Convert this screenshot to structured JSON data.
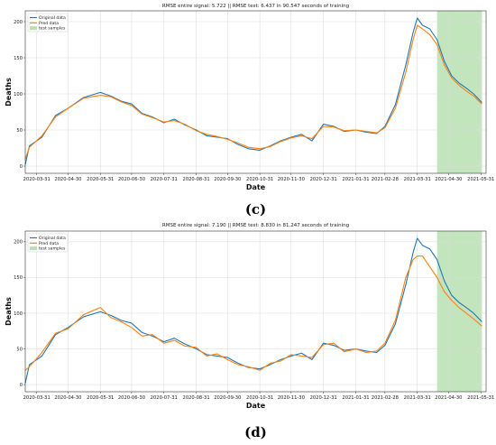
{
  "chart_data": [
    {
      "type": "line",
      "panel_label": "(c)",
      "title": "RMSE entire signal: 5.722 || RMSE test: 6.437 in 90.547 seconds of training",
      "xlabel": "Date",
      "ylabel": "Deaths",
      "ylim": [
        -10,
        215
      ],
      "yticks": [
        0,
        50,
        100,
        150,
        200
      ],
      "xticks": [
        "2020-03-31",
        "2020-04-30",
        "2020-05-31",
        "2020-06-30",
        "2020-07-31",
        "2020-08-31",
        "2020-09-30",
        "2020-10-31",
        "2020-11-30",
        "2020-12-31",
        "2021-01-31",
        "2021-02-28",
        "2021-03-31",
        "2021-04-30",
        "2021-05-31"
      ],
      "x_start": "2020-03-20",
      "x_end": "2021-06-05",
      "grid": true,
      "legend_position": "top-left",
      "test_region": {
        "start": "2021-04-19",
        "end": "2021-06-01",
        "label": "test samples",
        "color": "#b9e0b3"
      },
      "series": [
        {
          "name": "Original data",
          "color": "#1f77b4",
          "x": [
            "2020-03-20",
            "2020-03-24",
            "2020-04-05",
            "2020-04-18",
            "2020-04-30",
            "2020-05-15",
            "2020-05-31",
            "2020-06-10",
            "2020-06-20",
            "2020-06-30",
            "2020-07-10",
            "2020-07-20",
            "2020-07-31",
            "2020-08-10",
            "2020-08-20",
            "2020-08-31",
            "2020-09-10",
            "2020-09-20",
            "2020-09-30",
            "2020-10-10",
            "2020-10-20",
            "2020-10-31",
            "2020-11-10",
            "2020-11-20",
            "2020-11-30",
            "2020-12-10",
            "2020-12-20",
            "2020-12-31",
            "2021-01-10",
            "2021-01-20",
            "2021-01-31",
            "2021-02-10",
            "2021-02-20",
            "2021-02-28",
            "2021-03-10",
            "2021-03-20",
            "2021-03-27",
            "2021-03-31",
            "2021-04-05",
            "2021-04-12",
            "2021-04-19",
            "2021-04-26",
            "2021-05-03",
            "2021-05-10",
            "2021-05-17",
            "2021-05-24",
            "2021-06-01"
          ],
          "values": [
            2,
            28,
            40,
            70,
            80,
            95,
            102,
            97,
            90,
            86,
            73,
            68,
            60,
            65,
            57,
            50,
            42,
            40,
            38,
            30,
            24,
            22,
            28,
            35,
            40,
            44,
            35,
            58,
            55,
            48,
            50,
            47,
            45,
            55,
            85,
            140,
            185,
            205,
            195,
            190,
            175,
            145,
            125,
            115,
            108,
            100,
            88
          ]
        },
        {
          "name": "Pred data",
          "color": "#ff7f0e",
          "x": [
            "2020-03-20",
            "2020-03-24",
            "2020-04-05",
            "2020-04-18",
            "2020-04-30",
            "2020-05-15",
            "2020-05-31",
            "2020-06-10",
            "2020-06-20",
            "2020-06-30",
            "2020-07-10",
            "2020-07-20",
            "2020-07-31",
            "2020-08-10",
            "2020-08-20",
            "2020-08-31",
            "2020-09-10",
            "2020-09-20",
            "2020-09-30",
            "2020-10-10",
            "2020-10-20",
            "2020-10-31",
            "2020-11-10",
            "2020-11-20",
            "2020-11-30",
            "2020-12-10",
            "2020-12-20",
            "2020-12-31",
            "2021-01-10",
            "2021-01-20",
            "2021-01-31",
            "2021-02-10",
            "2021-02-20",
            "2021-02-28",
            "2021-03-10",
            "2021-03-20",
            "2021-03-27",
            "2021-03-31",
            "2021-04-05",
            "2021-04-12",
            "2021-04-19",
            "2021-04-26",
            "2021-05-03",
            "2021-05-10",
            "2021-05-17",
            "2021-05-24",
            "2021-06-01"
          ],
          "values": [
            10,
            26,
            42,
            68,
            80,
            94,
            98,
            96,
            89,
            84,
            72,
            67,
            61,
            63,
            58,
            49,
            44,
            41,
            37,
            32,
            26,
            24,
            27,
            34,
            39,
            42,
            38,
            55,
            54,
            49,
            50,
            48,
            46,
            53,
            80,
            130,
            175,
            195,
            190,
            182,
            168,
            140,
            122,
            112,
            104,
            97,
            86
          ]
        }
      ]
    },
    {
      "type": "line",
      "panel_label": "(d)",
      "title": "RMSE entire signal: 7.190 || RMSE test: 8.830 in 81.247 seconds of training",
      "xlabel": "Date",
      "ylabel": "Deaths",
      "ylim": [
        -10,
        215
      ],
      "yticks": [
        0,
        50,
        100,
        150,
        200
      ],
      "xticks": [
        "2020-03-31",
        "2020-04-30",
        "2020-05-31",
        "2020-06-30",
        "2020-07-31",
        "2020-08-31",
        "2020-09-30",
        "2020-10-31",
        "2020-11-30",
        "2020-12-31",
        "2021-01-31",
        "2021-02-28",
        "2021-03-31",
        "2021-04-30",
        "2021-05-31"
      ],
      "x_start": "2020-03-20",
      "x_end": "2021-06-05",
      "grid": true,
      "legend_position": "top-left",
      "test_region": {
        "start": "2021-04-19",
        "end": "2021-06-01",
        "label": "test samples",
        "color": "#b9e0b3"
      },
      "series": [
        {
          "name": "Original data",
          "color": "#1f77b4",
          "x": [
            "2020-03-20",
            "2020-03-24",
            "2020-04-05",
            "2020-04-18",
            "2020-04-30",
            "2020-05-15",
            "2020-05-31",
            "2020-06-10",
            "2020-06-20",
            "2020-06-30",
            "2020-07-10",
            "2020-07-20",
            "2020-07-31",
            "2020-08-10",
            "2020-08-20",
            "2020-08-31",
            "2020-09-10",
            "2020-09-20",
            "2020-09-30",
            "2020-10-10",
            "2020-10-20",
            "2020-10-31",
            "2020-11-10",
            "2020-11-20",
            "2020-11-30",
            "2020-12-10",
            "2020-12-20",
            "2020-12-31",
            "2021-01-10",
            "2021-01-20",
            "2021-01-31",
            "2021-02-10",
            "2021-02-20",
            "2021-02-28",
            "2021-03-10",
            "2021-03-20",
            "2021-03-27",
            "2021-03-31",
            "2021-04-05",
            "2021-04-12",
            "2021-04-19",
            "2021-04-26",
            "2021-05-03",
            "2021-05-10",
            "2021-05-17",
            "2021-05-24",
            "2021-06-01"
          ],
          "values": [
            2,
            28,
            40,
            70,
            80,
            95,
            102,
            97,
            90,
            86,
            73,
            68,
            60,
            65,
            57,
            50,
            42,
            40,
            38,
            30,
            24,
            22,
            28,
            35,
            40,
            44,
            35,
            58,
            55,
            48,
            50,
            47,
            45,
            55,
            85,
            140,
            185,
            205,
            195,
            190,
            175,
            145,
            125,
            115,
            108,
            100,
            88
          ]
        },
        {
          "name": "Pred data",
          "color": "#ff7f0e",
          "x": [
            "2020-03-20",
            "2020-03-24",
            "2020-04-05",
            "2020-04-18",
            "2020-04-30",
            "2020-05-15",
            "2020-05-31",
            "2020-06-10",
            "2020-06-20",
            "2020-06-30",
            "2020-07-10",
            "2020-07-20",
            "2020-07-31",
            "2020-08-10",
            "2020-08-20",
            "2020-08-31",
            "2020-09-10",
            "2020-09-20",
            "2020-09-30",
            "2020-10-10",
            "2020-10-20",
            "2020-10-31",
            "2020-11-10",
            "2020-11-20",
            "2020-11-30",
            "2020-12-10",
            "2020-12-20",
            "2020-12-31",
            "2021-01-10",
            "2021-01-20",
            "2021-01-31",
            "2021-02-10",
            "2021-02-20",
            "2021-02-28",
            "2021-03-10",
            "2021-03-20",
            "2021-03-27",
            "2021-03-31",
            "2021-04-05",
            "2021-04-12",
            "2021-04-19",
            "2021-04-26",
            "2021-05-03",
            "2021-05-10",
            "2021-05-17",
            "2021-05-24",
            "2021-06-01"
          ],
          "values": [
            20,
            25,
            45,
            72,
            78,
            98,
            108,
            94,
            88,
            80,
            68,
            70,
            58,
            62,
            54,
            52,
            40,
            43,
            35,
            28,
            25,
            20,
            30,
            33,
            42,
            40,
            38,
            56,
            58,
            46,
            50,
            45,
            47,
            58,
            90,
            150,
            175,
            180,
            180,
            165,
            150,
            130,
            118,
            108,
            100,
            92,
            82
          ]
        }
      ]
    }
  ]
}
